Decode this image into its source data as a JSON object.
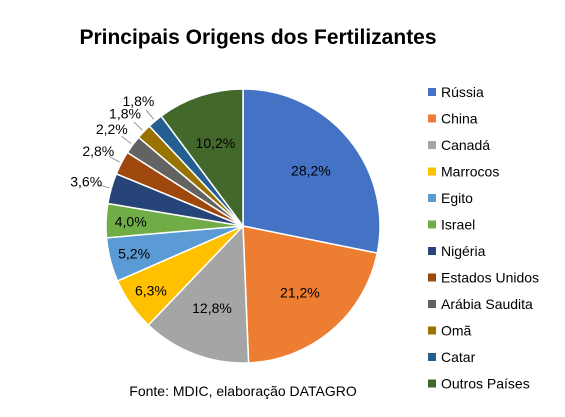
{
  "chart_data": {
    "type": "pie",
    "title": "Principais Origens dos Fertilizantes",
    "source": "Fonte: MDIC, elaboração DATAGRO",
    "legend_position": "right",
    "slices": [
      {
        "label": "Rússia",
        "value": 28.2,
        "display": "28,2%",
        "color": "#4472C4"
      },
      {
        "label": "China",
        "value": 21.2,
        "display": "21,2%",
        "color": "#ED7D31"
      },
      {
        "label": "Canadá",
        "value": 12.8,
        "display": "12,8%",
        "color": "#A5A5A5"
      },
      {
        "label": "Marrocos",
        "value": 6.3,
        "display": "6,3%",
        "color": "#FFC000"
      },
      {
        "label": "Egito",
        "value": 5.2,
        "display": "5,2%",
        "color": "#5B9BD5"
      },
      {
        "label": "Israel",
        "value": 4.0,
        "display": "4,0%",
        "color": "#70AD47"
      },
      {
        "label": "Nigéria",
        "value": 3.6,
        "display": "3,6%",
        "color": "#264478"
      },
      {
        "label": "Estados Unidos",
        "value": 2.8,
        "display": "2,8%",
        "color": "#9E480E"
      },
      {
        "label": "Arábia Saudita",
        "value": 2.2,
        "display": "2,2%",
        "color": "#636363"
      },
      {
        "label": "Omã",
        "value": 1.8,
        "display": "1,8%",
        "color": "#997300"
      },
      {
        "label": "Catar",
        "value": 1.8,
        "display": "1,8%",
        "color": "#255E91"
      },
      {
        "label": "Outros Países",
        "value": 10.2,
        "display": "10,2%",
        "color": "#43682B"
      }
    ]
  }
}
